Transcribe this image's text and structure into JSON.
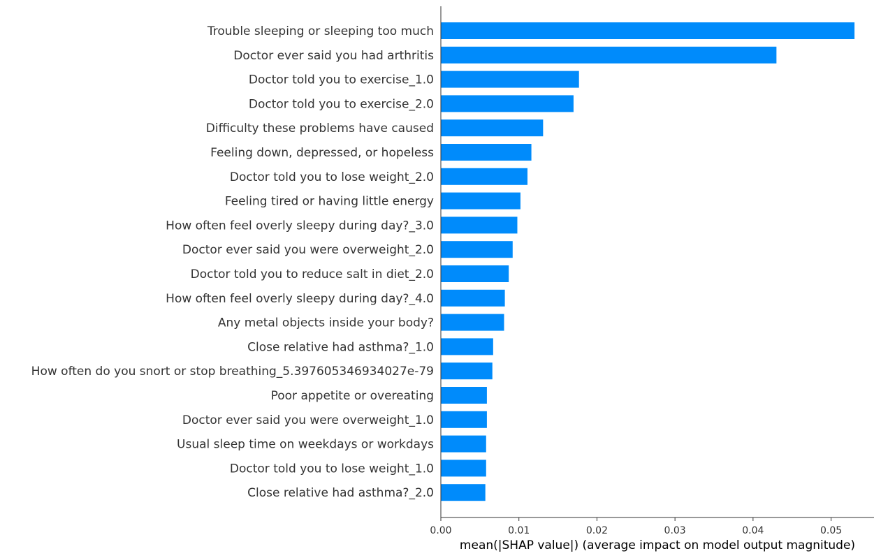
{
  "chart_data": {
    "type": "bar",
    "orientation": "horizontal",
    "categories": [
      "Trouble sleeping or sleeping too much",
      "Doctor ever said you had arthritis",
      "Doctor told you to exercise_1.0",
      "Doctor told you to exercise_2.0",
      "Difficulty these problems have caused",
      "Feeling down, depressed, or hopeless",
      "Doctor told you to lose weight_2.0",
      "Feeling tired or having little energy",
      "How often feel overly sleepy during day?_3.0",
      "Doctor ever said you were overweight_2.0",
      "Doctor told you to reduce salt in diet_2.0",
      "How often feel overly sleepy during day?_4.0",
      "Any metal objects inside your body?",
      "Close relative had asthma?_1.0",
      "How often do you snort or stop breathing_5.397605346934027e-79",
      "Poor appetite or overeating",
      "Doctor ever said you were overweight_1.0",
      "Usual sleep time on weekdays or workdays",
      "Doctor told you to lose weight_1.0",
      "Close relative had asthma?_2.0"
    ],
    "values": [
      0.053,
      0.043,
      0.0177,
      0.017,
      0.0131,
      0.0116,
      0.0111,
      0.0102,
      0.0098,
      0.0092,
      0.0087,
      0.0082,
      0.0081,
      0.0067,
      0.0066,
      0.0059,
      0.0059,
      0.0058,
      0.0058,
      0.0057
    ],
    "xlabel": "mean(|SHAP value|) (average impact on model output magnitude)",
    "ylabel": "",
    "title": "",
    "xlim": [
      0.0,
      0.0555
    ],
    "xticks": [
      0.0,
      0.01,
      0.02,
      0.03,
      0.04,
      0.05
    ],
    "xtick_labels": [
      "0.00",
      "0.01",
      "0.02",
      "0.03",
      "0.04",
      "0.05"
    ],
    "grid": false,
    "bar_color": "#008bfb",
    "axis_color": "#333333"
  }
}
